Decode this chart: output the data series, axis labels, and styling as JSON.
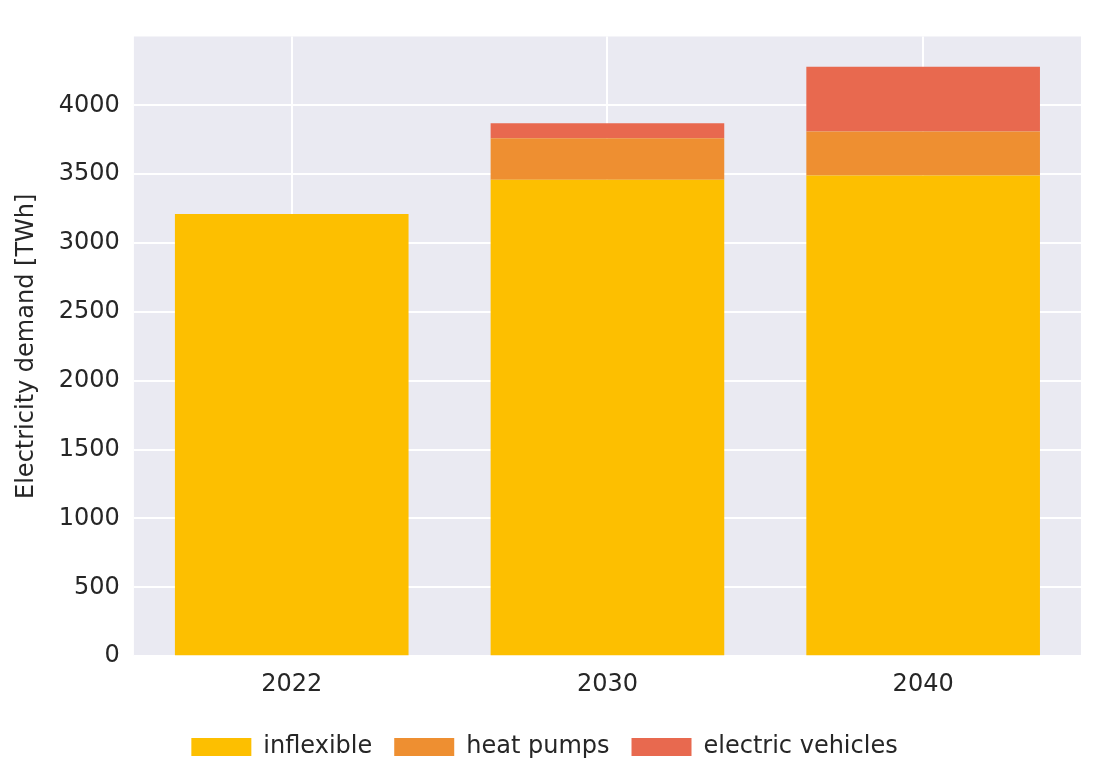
{
  "chart_data": {
    "type": "bar",
    "stacked": true,
    "ylabel": "Electricity demand [TWh]",
    "categories": [
      "2022",
      "2030",
      "2040"
    ],
    "series": [
      {
        "name": "inflexible",
        "color": "#fdbf00",
        "values": [
          3210,
          3460,
          3490
        ]
      },
      {
        "name": "heat pumps",
        "color": "#ee8f31",
        "values": [
          null,
          300,
          320
        ]
      },
      {
        "name": "electric vehicles",
        "color": "#e8694f",
        "values": [
          null,
          110,
          470
        ]
      }
    ],
    "ylim": [
      0,
      4500
    ],
    "yticks": [
      0,
      500,
      1000,
      1500,
      2000,
      2500,
      3000,
      3500,
      4000
    ],
    "grid": true,
    "legend": "bottom"
  }
}
